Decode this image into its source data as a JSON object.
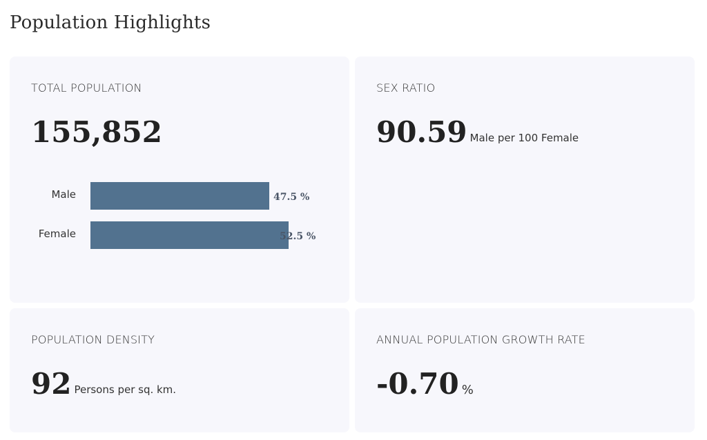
{
  "title": "Population Highlights",
  "total_population": {
    "label": "TOTAL POPULATION",
    "value": "155,852"
  },
  "sex_ratio": {
    "label": "SEX RATIO",
    "value": "90.59",
    "unit": "Male per 100 Female"
  },
  "population_density": {
    "label": "POPULATION DENSITY",
    "value": "92",
    "unit": "Persons per sq. km."
  },
  "growth_rate": {
    "label": "ANNUAL POPULATION GROWTH RATE",
    "value": "-0.70",
    "unit": "%"
  },
  "chart_data": {
    "type": "bar",
    "orientation": "horizontal",
    "categories": [
      "Male",
      "Female"
    ],
    "values": [
      47.5,
      52.5
    ],
    "value_labels": [
      "47.5 %",
      "52.5 %"
    ],
    "color": "#52728f",
    "title": "",
    "xlabel": "",
    "ylabel": ""
  }
}
